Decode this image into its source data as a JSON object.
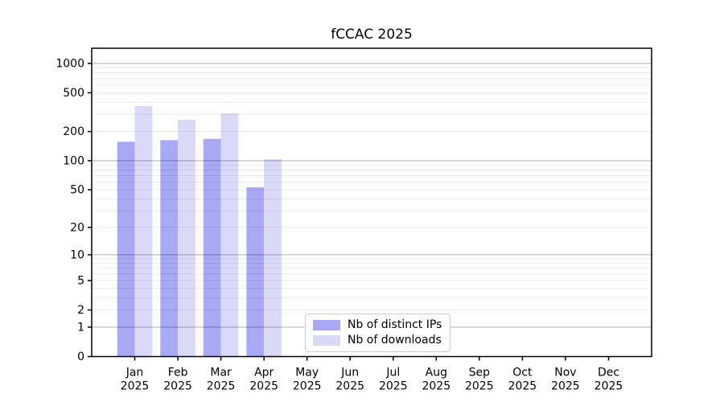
{
  "chart_data": {
    "type": "bar",
    "title": "fCCAC 2025",
    "categories": [
      "Jan",
      "Feb",
      "Mar",
      "Apr",
      "May",
      "Jun",
      "Jul",
      "Aug",
      "Sep",
      "Oct",
      "Nov",
      "Dec"
    ],
    "tick_year": "2025",
    "series": [
      {
        "name": "Nb of distinct IPs",
        "color": "#a8a8f4",
        "values": [
          157,
          163,
          168,
          53,
          null,
          null,
          null,
          null,
          null,
          null,
          null,
          null
        ]
      },
      {
        "name": "Nb of downloads",
        "color": "#dadaf8",
        "values": [
          365,
          264,
          308,
          104,
          null,
          null,
          null,
          null,
          null,
          null,
          null,
          null
        ]
      }
    ],
    "yscale": "log10(1+x)",
    "yticks": [
      0,
      1,
      2,
      5,
      10,
      20,
      50,
      100,
      200,
      500,
      1000
    ],
    "ylim": [
      0,
      1430
    ],
    "grid": true,
    "legend_position": "inside-bottom-center-left",
    "colors": {
      "background": "#ffffff",
      "axis": "#000000",
      "grid_major": "rgba(0,0,0,0.25)",
      "grid_minor": "rgba(0,0,0,0.075)",
      "tick_text": "#000000"
    }
  }
}
